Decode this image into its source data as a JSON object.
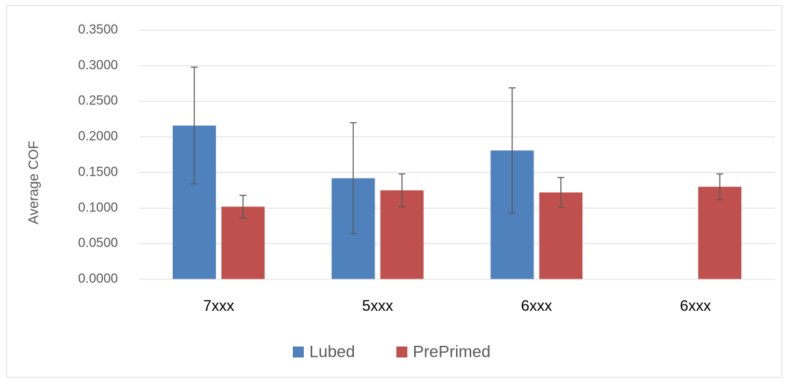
{
  "chart_data": {
    "type": "bar",
    "y_label": "Average COF",
    "categories": [
      "7xxx",
      "5xxx",
      "6xxx",
      "6xxx"
    ],
    "series": [
      {
        "name": "Lubed",
        "color": "#4f81bd",
        "values": [
          0.216,
          0.142,
          0.181,
          null
        ],
        "errors": [
          0.082,
          0.078,
          0.088,
          null
        ]
      },
      {
        "name": "PrePrimed",
        "color": "#c0504d",
        "values": [
          0.102,
          0.125,
          0.122,
          0.13
        ],
        "errors": [
          0.016,
          0.023,
          0.021,
          0.018
        ]
      }
    ],
    "ylim": [
      0,
      0.35
    ],
    "yticks": [
      {
        "value": 0,
        "label": "0.0000"
      },
      {
        "value": 0.05,
        "label": "0.0500"
      },
      {
        "value": 0.1,
        "label": "0.1000"
      },
      {
        "value": 0.15,
        "label": "0.1500"
      },
      {
        "value": 0.2,
        "label": "0.2000"
      },
      {
        "value": 0.25,
        "label": "0.2500"
      },
      {
        "value": 0.3,
        "label": "0.3000"
      },
      {
        "value": 0.35,
        "label": "0.3500"
      }
    ],
    "grid": true,
    "legend": "bottom"
  }
}
